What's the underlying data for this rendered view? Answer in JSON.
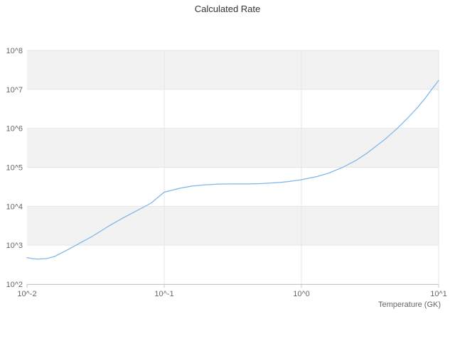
{
  "chart_data": {
    "type": "line",
    "title": "Calculated Rate",
    "xlabel": "Temperature (GK)",
    "ylabel": "",
    "xscale": "log",
    "yscale": "log",
    "xlim": [
      0.01,
      10
    ],
    "ylim": [
      100,
      100000000
    ],
    "x_tick_labels": [
      "10^-2",
      "10^-1",
      "10^0",
      "10^1"
    ],
    "x_tick_values": [
      0.01,
      0.1,
      1,
      10
    ],
    "y_tick_labels": [
      "10^2",
      "10^3",
      "10^4",
      "10^5",
      "10^6",
      "10^7",
      "10^8"
    ],
    "y_tick_values": [
      100,
      1000,
      10000,
      100000,
      1000000,
      10000000,
      100000000
    ],
    "grid": true,
    "legend": false,
    "colors": {
      "line": "#7cb5ec",
      "band": "#f2f2f2",
      "gridline": "#e6e6e6",
      "axis_line": "#c8c8c8",
      "background": "#ffffff"
    },
    "series": [
      {
        "name": "Calculated Rate",
        "x": [
          0.01,
          0.011,
          0.012,
          0.014,
          0.016,
          0.02,
          0.025,
          0.03,
          0.04,
          0.05,
          0.06,
          0.08,
          0.1,
          0.13,
          0.16,
          0.2,
          0.25,
          0.3,
          0.4,
          0.5,
          0.6,
          0.7,
          0.8,
          1.0,
          1.3,
          1.6,
          2.0,
          2.5,
          3.0,
          4.0,
          5.0,
          6.0,
          7.0,
          8.0,
          9.0,
          10.0
        ],
        "y": [
          480,
          450,
          440,
          455,
          520,
          780,
          1200,
          1700,
          3200,
          5000,
          7000,
          12000,
          23000,
          29000,
          33000,
          35500,
          37000,
          37500,
          37500,
          38000,
          39500,
          41000,
          43000,
          48000,
          58000,
          72000,
          100000,
          150000,
          230000,
          500000,
          1000000,
          1900000,
          3400000,
          6000000,
          10500000,
          17000000
        ]
      }
    ]
  }
}
